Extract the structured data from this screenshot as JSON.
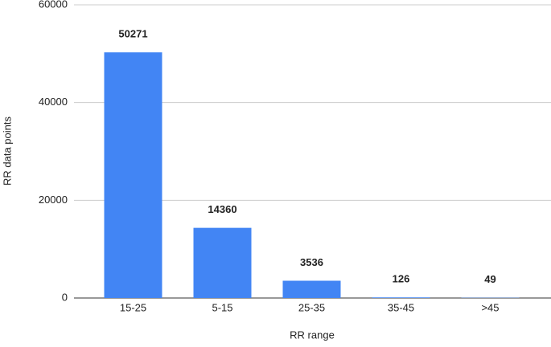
{
  "chart_data": {
    "type": "bar",
    "x_label": "RR range",
    "y_label": "RR data points",
    "categories": [
      "15-25",
      "5-15",
      "25-35",
      "35-45",
      ">45"
    ],
    "values": [
      50271,
      14360,
      3536,
      126,
      49
    ],
    "color": "#4285f4",
    "ylim": [
      0,
      60000
    ],
    "yticks": [
      0,
      20000,
      40000,
      60000
    ],
    "grid": true
  }
}
